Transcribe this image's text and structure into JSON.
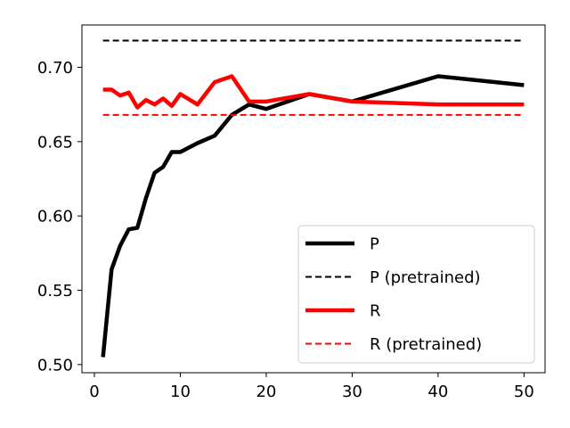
{
  "chart_data": {
    "type": "line",
    "xlim": [
      -1.45,
      52.45
    ],
    "ylim": [
      0.4945,
      0.7285
    ],
    "x_ticks": [
      0,
      10,
      20,
      30,
      40,
      50
    ],
    "y_ticks": [
      0.5,
      0.55,
      0.6,
      0.65,
      0.7
    ],
    "x_tick_labels": [
      "0",
      "10",
      "20",
      "30",
      "40",
      "50"
    ],
    "y_tick_labels": [
      "0.50",
      "0.55",
      "0.60",
      "0.65",
      "0.70"
    ],
    "grid": false,
    "legend_position": "lower right",
    "series": [
      {
        "name": "P",
        "color": "#000000",
        "style": "solid",
        "x": [
          1,
          2,
          3,
          4,
          5,
          6,
          7,
          8,
          9,
          10,
          12,
          14,
          16,
          18,
          20,
          25,
          30,
          40,
          50
        ],
        "y": [
          0.505,
          0.564,
          0.58,
          0.591,
          0.592,
          0.612,
          0.629,
          0.633,
          0.643,
          0.643,
          0.649,
          0.654,
          0.668,
          0.675,
          0.672,
          0.682,
          0.677,
          0.694,
          0.688
        ]
      },
      {
        "name": "P (pretrained)",
        "color": "#000000",
        "style": "dashed",
        "x": [
          1,
          50
        ],
        "y": [
          0.718,
          0.718
        ]
      },
      {
        "name": "R",
        "color": "#ff0000",
        "style": "solid",
        "x": [
          1,
          2,
          3,
          4,
          5,
          6,
          7,
          8,
          9,
          10,
          12,
          14,
          16,
          18,
          20,
          25,
          30,
          40,
          50
        ],
        "y": [
          0.685,
          0.685,
          0.681,
          0.683,
          0.673,
          0.678,
          0.675,
          0.679,
          0.674,
          0.682,
          0.675,
          0.69,
          0.694,
          0.677,
          0.677,
          0.682,
          0.677,
          0.675,
          0.675
        ]
      },
      {
        "name": "R (pretrained)",
        "color": "#ff0000",
        "style": "dashed",
        "x": [
          1,
          50
        ],
        "y": [
          0.668,
          0.668
        ]
      }
    ]
  }
}
